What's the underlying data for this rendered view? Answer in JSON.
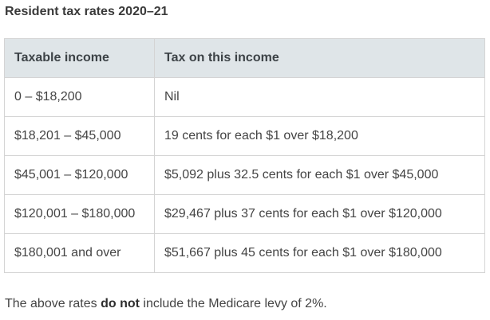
{
  "title": "Resident tax rates 2020–21",
  "table": {
    "headers": [
      "Taxable income",
      "Tax on this income"
    ],
    "rows": [
      [
        "0 – $18,200",
        "Nil"
      ],
      [
        "$18,201 – $45,000",
        "19  cents for each $1 over $18,200"
      ],
      [
        "$45,001 – $120,000",
        "$5,092 plus 32.5  cents for each $1 over $45,000"
      ],
      [
        "$120,001 – $180,000",
        "$29,467  plus 37  cents for each $1 over $120,000"
      ],
      [
        "$180,001 and over",
        "$51,667  plus 45  cents for each $1 over $180,000"
      ]
    ]
  },
  "note": {
    "prefix": "The above rates ",
    "emphasis": "do not",
    "suffix": " include the Medicare levy of 2%."
  }
}
